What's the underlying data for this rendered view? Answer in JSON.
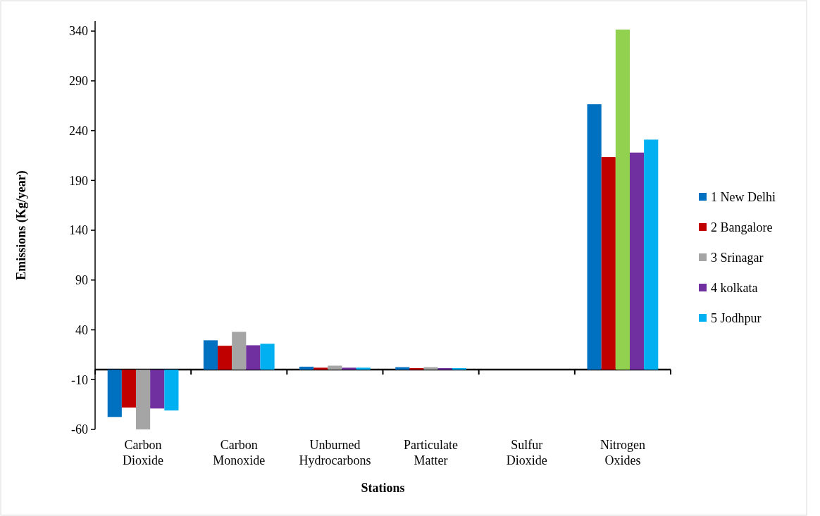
{
  "chart_data": {
    "type": "bar",
    "xlabel": "Stations",
    "ylabel": "Emissions (Kg/year)",
    "categories": [
      "Carbon Dioxide",
      "Carbon Monoxide",
      "Unburned Hydrocarbons",
      "Particulate Matter",
      "Sulfur Dioxide",
      "Nitrogen Oxides"
    ],
    "series": [
      {
        "name": "1 New Delhi",
        "color": "#0070c0",
        "values": [
          -47.5,
          29.5,
          3,
          2.5,
          0,
          266.5
        ]
      },
      {
        "name": "2 Bangalore",
        "color": "#c00000",
        "values": [
          -38,
          24,
          2,
          1.5,
          0,
          213.5
        ]
      },
      {
        "name": "3 Srinagar",
        "color": "#a5a5a5",
        "colors": [
          "#a5a5a5",
          "#a5a5a5",
          "#a5a5a5",
          "#a5a5a5",
          "#a5a5a5",
          "#92d050"
        ],
        "values": [
          -60,
          38,
          4,
          2.5,
          0,
          341.5
        ]
      },
      {
        "name": "4 kolkata",
        "color": "#7030a0",
        "values": [
          -39,
          24.5,
          2,
          1.5,
          0,
          218
        ]
      },
      {
        "name": "5 Jodhpur",
        "color": "#00b0f0",
        "values": [
          -41,
          26,
          2,
          1.5,
          0,
          231
        ]
      }
    ],
    "ylim": [
      -60,
      350
    ],
    "yticks": [
      -60,
      -10,
      40,
      90,
      140,
      190,
      240,
      290,
      340
    ],
    "grid": false,
    "legend": "right"
  }
}
